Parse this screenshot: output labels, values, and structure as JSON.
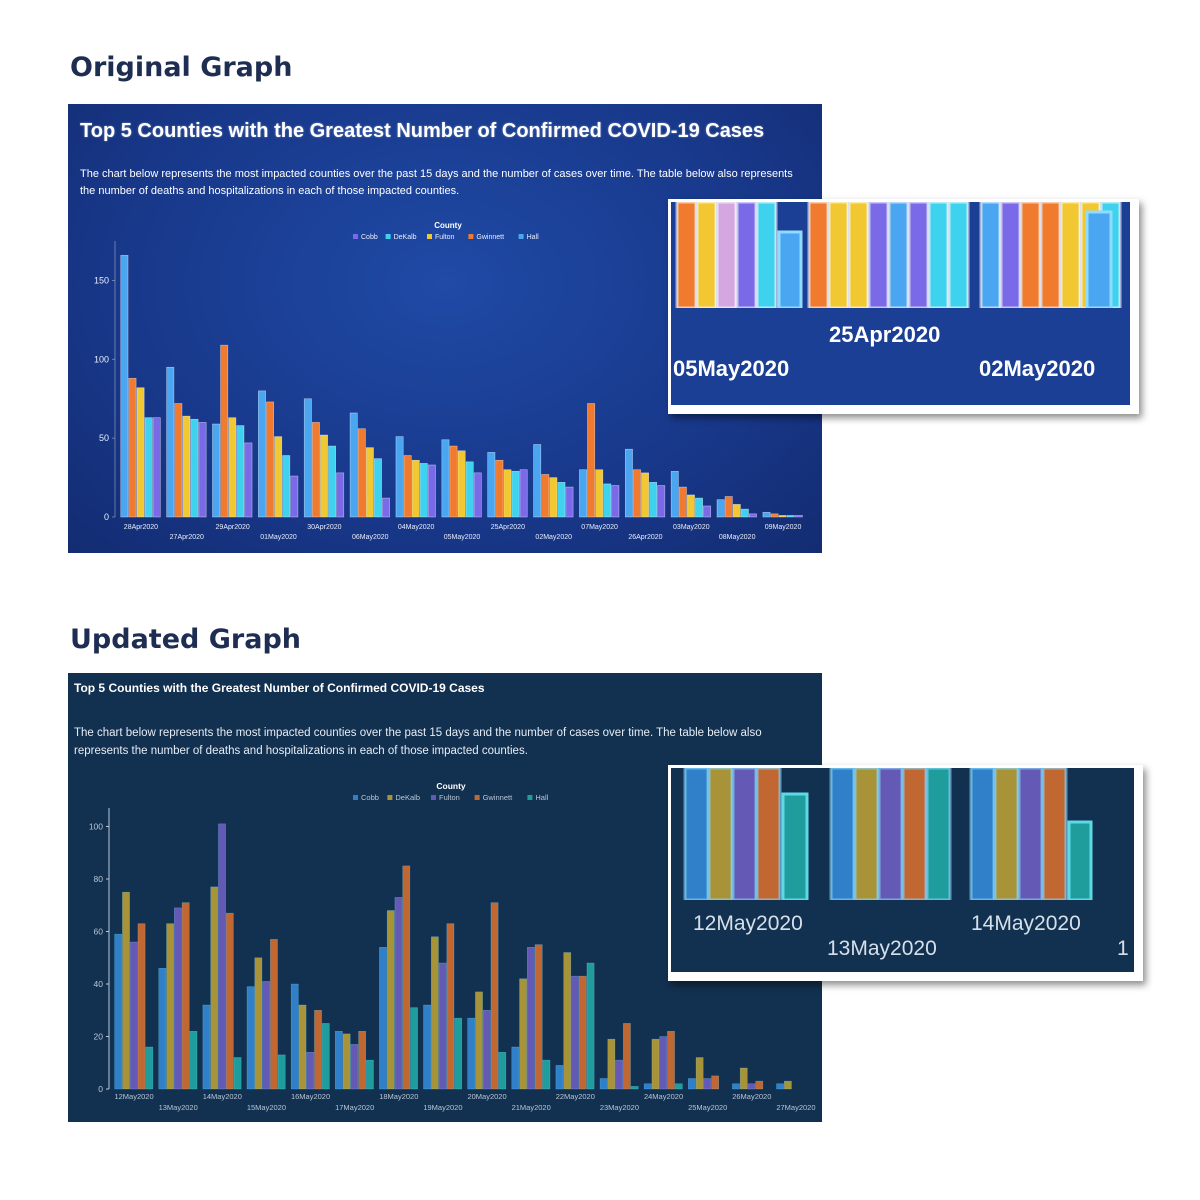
{
  "headings": {
    "original": "Original Graph",
    "updated": "Updated Graph"
  },
  "panel_title": "Top 5 Counties with the Greatest Number of Confirmed COVID-19 Cases",
  "panel_description": "The chart below represents the most impacted counties over the past 15 days and the number of cases over time. The table below also represents the number of deaths and hospitalizations in each of those impacted counties.",
  "colors": {
    "original": {
      "Cobb": "#7b6ae8",
      "DeKalb": "#3fd2ee",
      "Fulton": "#f2c832",
      "Gwinnett": "#f07a2e",
      "Hall": "#4aa6f0"
    },
    "updated": {
      "Cobb": "#2f7fc9",
      "DeKalb": "#a99338",
      "Fulton": "#6459b4",
      "Gwinnett": "#c16832",
      "Hall": "#1f9c9c"
    }
  },
  "chart_data": [
    {
      "type": "bar",
      "title": "Top 5 Counties with the Greatest Number of Confirmed COVID-19 Cases",
      "legend_title": "County",
      "legend_position": "top-center",
      "categories": [
        "28Apr2020",
        "27Apr2020",
        "29Apr2020",
        "01May2020",
        "30Apr2020",
        "06May2020",
        "04May2020",
        "05May2020",
        "25Apr2020",
        "02May2020",
        "07May2020",
        "26Apr2020",
        "03May2020",
        "08May2020",
        "09May2020"
      ],
      "series": [
        {
          "name": "Hall",
          "values": [
            166,
            95,
            59,
            80,
            75,
            66,
            51,
            49,
            41,
            46,
            30,
            43,
            29,
            11,
            3
          ]
        },
        {
          "name": "Gwinnett",
          "values": [
            88,
            72,
            109,
            73,
            60,
            56,
            39,
            45,
            36,
            27,
            72,
            30,
            19,
            13,
            2
          ]
        },
        {
          "name": "Fulton",
          "values": [
            82,
            64,
            63,
            51,
            52,
            44,
            36,
            42,
            30,
            25,
            30,
            28,
            14,
            8,
            1
          ]
        },
        {
          "name": "DeKalb",
          "values": [
            63,
            62,
            58,
            39,
            45,
            37,
            34,
            35,
            29,
            22,
            21,
            22,
            12,
            5,
            1
          ]
        },
        {
          "name": "Cobb",
          "values": [
            63,
            60,
            47,
            26,
            28,
            12,
            33,
            28,
            30,
            19,
            20,
            20,
            7,
            2,
            1
          ]
        }
      ],
      "yticks": [
        0,
        50,
        100,
        150
      ],
      "ylim": [
        0,
        170
      ],
      "grid": false,
      "xlabel": "",
      "ylabel": ""
    },
    {
      "type": "bar",
      "title": "Top 5 Counties with the Greatest Number of Confirmed COVID-19 Cases",
      "legend_title": "County",
      "legend_position": "top-center",
      "categories": [
        "12May2020",
        "13May2020",
        "14May2020",
        "15May2020",
        "16May2020",
        "17May2020",
        "18May2020",
        "19May2020",
        "20May2020",
        "21May2020",
        "22May2020",
        "23May2020",
        "24May2020",
        "25May2020",
        "26May2020",
        "27May2020"
      ],
      "series": [
        {
          "name": "Cobb",
          "values": [
            59,
            46,
            32,
            39,
            40,
            22,
            54,
            32,
            27,
            16,
            9,
            4,
            2,
            4,
            2,
            2
          ]
        },
        {
          "name": "DeKalb",
          "values": [
            75,
            63,
            77,
            50,
            32,
            21,
            68,
            58,
            37,
            42,
            52,
            19,
            19,
            12,
            8,
            3
          ]
        },
        {
          "name": "Fulton",
          "values": [
            56,
            69,
            101,
            41,
            14,
            17,
            73,
            48,
            30,
            54,
            43,
            11,
            20,
            4,
            2,
            0
          ]
        },
        {
          "name": "Gwinnett",
          "values": [
            63,
            71,
            67,
            57,
            30,
            22,
            85,
            63,
            71,
            55,
            43,
            25,
            22,
            5,
            3,
            0
          ]
        },
        {
          "name": "Hall",
          "values": [
            16,
            22,
            12,
            13,
            25,
            11,
            31,
            27,
            14,
            11,
            48,
            1,
            2,
            0,
            0,
            0
          ]
        }
      ],
      "yticks": [
        0,
        20,
        40,
        60,
        80,
        100
      ],
      "ylim": [
        0,
        104
      ],
      "grid": false,
      "xlabel": "",
      "ylabel": ""
    }
  ],
  "zoom_insets": {
    "original": {
      "labels": [
        "25Apr2020",
        "05May2020",
        "02May2020"
      ]
    },
    "updated": {
      "labels": [
        "12May2020",
        "14May2020",
        "13May2020",
        "1"
      ]
    }
  }
}
